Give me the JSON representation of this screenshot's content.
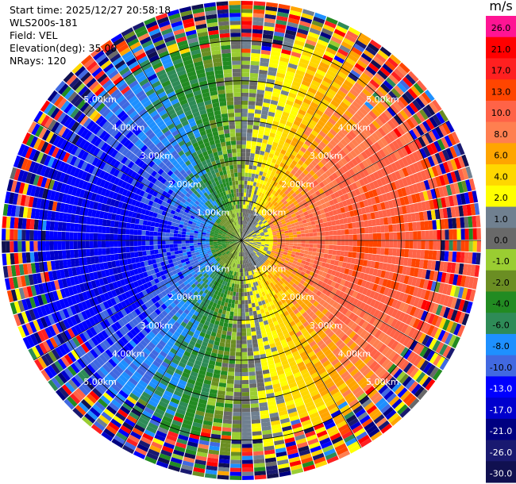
{
  "info": {
    "start_time": "Start time: 2025/12/27 20:58:18",
    "station": "WLS200s-181",
    "field": "Field: VEL",
    "elevation": "Elevation(deg): 35.00",
    "nrays": "NRays: 120"
  },
  "colorbar": {
    "unit": "m/s",
    "levels": [
      {
        "label": "26.0",
        "color": "#ff1493"
      },
      {
        "label": "21.0",
        "color": "#ff0000"
      },
      {
        "label": "17.0",
        "color": "#ff2020"
      },
      {
        "label": "13.0",
        "color": "#ff4500"
      },
      {
        "label": "10.0",
        "color": "#ff6347"
      },
      {
        "label": "8.0",
        "color": "#ff7f50"
      },
      {
        "label": "6.0",
        "color": "#ffa500"
      },
      {
        "label": "4.0",
        "color": "#ffd700"
      },
      {
        "label": "2.0",
        "color": "#ffff00"
      },
      {
        "label": "1.0",
        "color": "#708090"
      },
      {
        "label": "0.0",
        "color": "#696969"
      },
      {
        "label": "-1.0",
        "color": "#9acd32"
      },
      {
        "label": "-2.0",
        "color": "#6b8e23"
      },
      {
        "label": "-4.0",
        "color": "#228b22"
      },
      {
        "label": "-6.0",
        "color": "#2e8b57"
      },
      {
        "label": "-8.0",
        "color": "#1e90ff"
      },
      {
        "label": "-10.0",
        "color": "#4169e1"
      },
      {
        "label": "-13.0",
        "color": "#0000ff"
      },
      {
        "label": "-17.0",
        "color": "#0000cd"
      },
      {
        "label": "-21.0",
        "color": "#000080"
      },
      {
        "label": "-26.0",
        "color": "#191970"
      },
      {
        "label": "-30.0",
        "color": "#101050"
      }
    ]
  },
  "chart_data": {
    "type": "heatmap",
    "projection": "polar-ppi",
    "field": "VEL",
    "units": "m/s",
    "elevation_deg": 35.0,
    "n_rays": 120,
    "range_rings_km": [
      1.0,
      2.0,
      3.0,
      4.0,
      5.0
    ],
    "ring_labels": [
      "1.00km",
      "2.00km",
      "3.00km",
      "4.00km",
      "5.00km"
    ],
    "max_range_km": 6.0,
    "velocity_pattern": {
      "positive_side": "east",
      "negative_side": "west",
      "near_zero_axis": "north-south",
      "peak_abs_speed_ms": 12.0
    },
    "noise_beyond_range_km": 4.6
  }
}
